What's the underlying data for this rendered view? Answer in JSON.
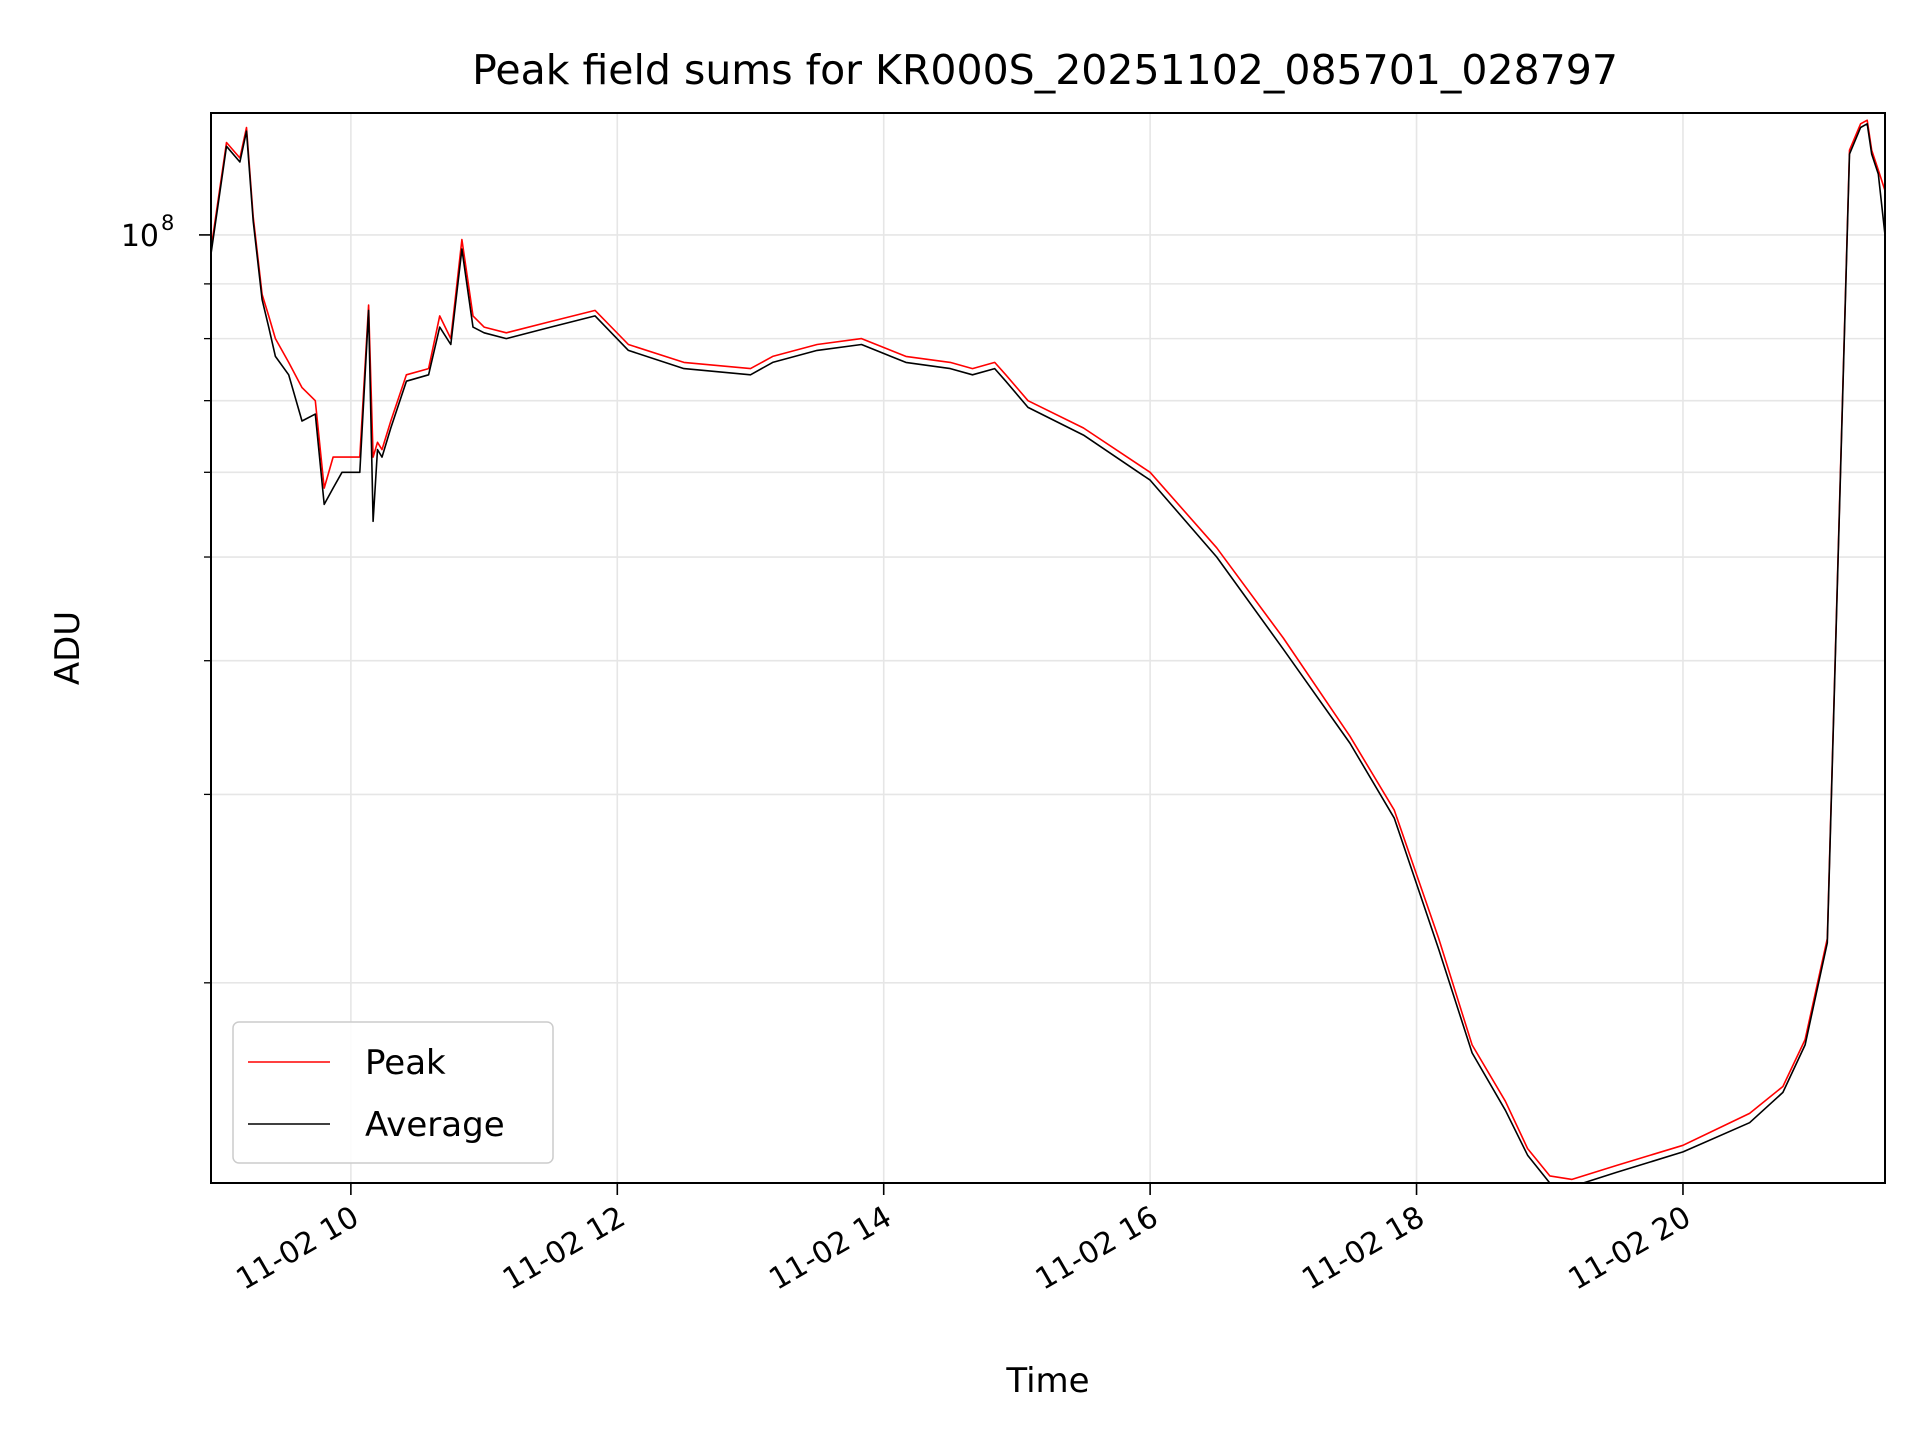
{
  "chart_data": {
    "type": "line",
    "title": "Peak field sums for KR000S_20251102_085701_028797",
    "xlabel": "Time",
    "ylabel": "ADU",
    "yscale": "log",
    "grid": true,
    "legend_position": "lower-left",
    "xlim": [
      "11-02 08:57",
      "11-02 21:31"
    ],
    "ylim": [
      13000000,
      130000000
    ],
    "x_ticks": [
      {
        "value": "11-02 10:00",
        "label": "11-02 10"
      },
      {
        "value": "11-02 12:00",
        "label": "11-02 12"
      },
      {
        "value": "11-02 14:00",
        "label": "11-02 14"
      },
      {
        "value": "11-02 16:00",
        "label": "11-02 16"
      },
      {
        "value": "11-02 18:00",
        "label": "11-02 18"
      },
      {
        "value": "11-02 20:00",
        "label": "11-02 20"
      }
    ],
    "y_major_tick": {
      "value": 100000000,
      "label_base": "10",
      "label_exp": "8"
    },
    "y_minor_ticks": [
      20000000,
      30000000,
      40000000,
      50000000,
      60000000,
      70000000,
      80000000,
      90000000
    ],
    "series": [
      {
        "name": "Peak",
        "color": "#ff0000",
        "x": [
          "11-02 08:57",
          "11-02 09:04",
          "11-02 09:10",
          "11-02 09:13",
          "11-02 09:16",
          "11-02 09:20",
          "11-02 09:23",
          "11-02 09:26",
          "11-02 09:32",
          "11-02 09:38",
          "11-02 09:44",
          "11-02 09:48",
          "11-02 09:52",
          "11-02 09:56",
          "11-02 10:04",
          "11-02 10:08",
          "11-02 10:10",
          "11-02 10:12",
          "11-02 10:14",
          "11-02 10:18",
          "11-02 10:25",
          "11-02 10:35",
          "11-02 10:40",
          "11-02 10:45",
          "11-02 10:50",
          "11-02 10:55",
          "11-02 11:00",
          "11-02 11:10",
          "11-02 11:30",
          "11-02 11:50",
          "11-02 12:05",
          "11-02 12:30",
          "11-02 13:00",
          "11-02 13:10",
          "11-02 13:30",
          "11-02 13:50",
          "11-02 14:10",
          "11-02 14:30",
          "11-02 14:40",
          "11-02 14:50",
          "11-02 14:55",
          "11-02 15:05",
          "11-02 15:30",
          "11-02 16:00",
          "11-02 16:30",
          "11-02 17:00",
          "11-02 17:30",
          "11-02 17:50",
          "11-02 18:10",
          "11-02 18:25",
          "11-02 18:40",
          "11-02 18:50",
          "11-02 19:00",
          "11-02 19:10",
          "11-02 19:30",
          "11-02 20:00",
          "11-02 20:30",
          "11-02 20:45",
          "11-02 20:55",
          "11-02 21:05",
          "11-02 21:15",
          "11-02 21:20",
          "11-02 21:23",
          "11-02 21:25",
          "11-02 21:28",
          "11-02 21:31"
        ],
        "y": [
          97000000,
          122000000,
          118000000,
          126000000,
          104000000,
          88000000,
          84000000,
          80000000,
          76000000,
          72000000,
          70000000,
          58000000,
          62000000,
          62000000,
          62000000,
          86000000,
          62000000,
          64000000,
          63000000,
          67000000,
          74000000,
          75000000,
          84000000,
          80000000,
          99000000,
          84000000,
          82000000,
          81000000,
          83000000,
          85000000,
          79000000,
          76000000,
          75000000,
          77000000,
          79000000,
          80000000,
          77000000,
          76000000,
          75000000,
          76000000,
          74000000,
          70000000,
          66000000,
          60000000,
          51000000,
          42000000,
          34000000,
          29000000,
          22000000,
          17500000,
          15500000,
          14000000,
          13200000,
          13100000,
          13500000,
          14100000,
          15100000,
          16000000,
          17700000,
          22000000,
          120000000,
          127000000,
          128000000,
          120000000,
          115000000,
          110000000
        ]
      },
      {
        "name": "Average",
        "color": "#000000",
        "x": [
          "11-02 08:57",
          "11-02 09:04",
          "11-02 09:10",
          "11-02 09:13",
          "11-02 09:16",
          "11-02 09:20",
          "11-02 09:23",
          "11-02 09:26",
          "11-02 09:32",
          "11-02 09:38",
          "11-02 09:44",
          "11-02 09:48",
          "11-02 09:52",
          "11-02 09:56",
          "11-02 10:04",
          "11-02 10:08",
          "11-02 10:10",
          "11-02 10:12",
          "11-02 10:14",
          "11-02 10:18",
          "11-02 10:25",
          "11-02 10:35",
          "11-02 10:40",
          "11-02 10:45",
          "11-02 10:50",
          "11-02 10:55",
          "11-02 11:00",
          "11-02 11:10",
          "11-02 11:30",
          "11-02 11:50",
          "11-02 12:05",
          "11-02 12:30",
          "11-02 13:00",
          "11-02 13:10",
          "11-02 13:30",
          "11-02 13:50",
          "11-02 14:10",
          "11-02 14:30",
          "11-02 14:40",
          "11-02 14:50",
          "11-02 14:55",
          "11-02 15:05",
          "11-02 15:30",
          "11-02 16:00",
          "11-02 16:30",
          "11-02 17:00",
          "11-02 17:30",
          "11-02 17:50",
          "11-02 18:10",
          "11-02 18:25",
          "11-02 18:40",
          "11-02 18:50",
          "11-02 19:00",
          "11-02 19:10",
          "11-02 19:30",
          "11-02 20:00",
          "11-02 20:30",
          "11-02 20:45",
          "11-02 20:55",
          "11-02 21:05",
          "11-02 21:15",
          "11-02 21:20",
          "11-02 21:23",
          "11-02 21:25",
          "11-02 21:28",
          "11-02 21:31"
        ],
        "y": [
          96000000,
          121000000,
          117000000,
          125000000,
          103000000,
          87000000,
          82000000,
          77000000,
          74000000,
          67000000,
          68000000,
          56000000,
          58000000,
          60000000,
          60000000,
          85000000,
          54000000,
          63000000,
          62000000,
          66000000,
          73000000,
          74000000,
          82000000,
          79000000,
          97000000,
          82000000,
          81000000,
          80000000,
          82000000,
          84000000,
          78000000,
          75000000,
          74000000,
          76000000,
          78000000,
          79000000,
          76000000,
          75000000,
          74000000,
          75000000,
          73000000,
          69000000,
          65000000,
          59000000,
          50000000,
          41000000,
          33500000,
          28500000,
          21500000,
          17200000,
          15200000,
          13800000,
          13000000,
          12900000,
          13300000,
          13900000,
          14800000,
          15800000,
          17500000,
          21800000,
          119000000,
          126000000,
          127000000,
          119000000,
          114000000,
          100000000
        ]
      }
    ]
  }
}
